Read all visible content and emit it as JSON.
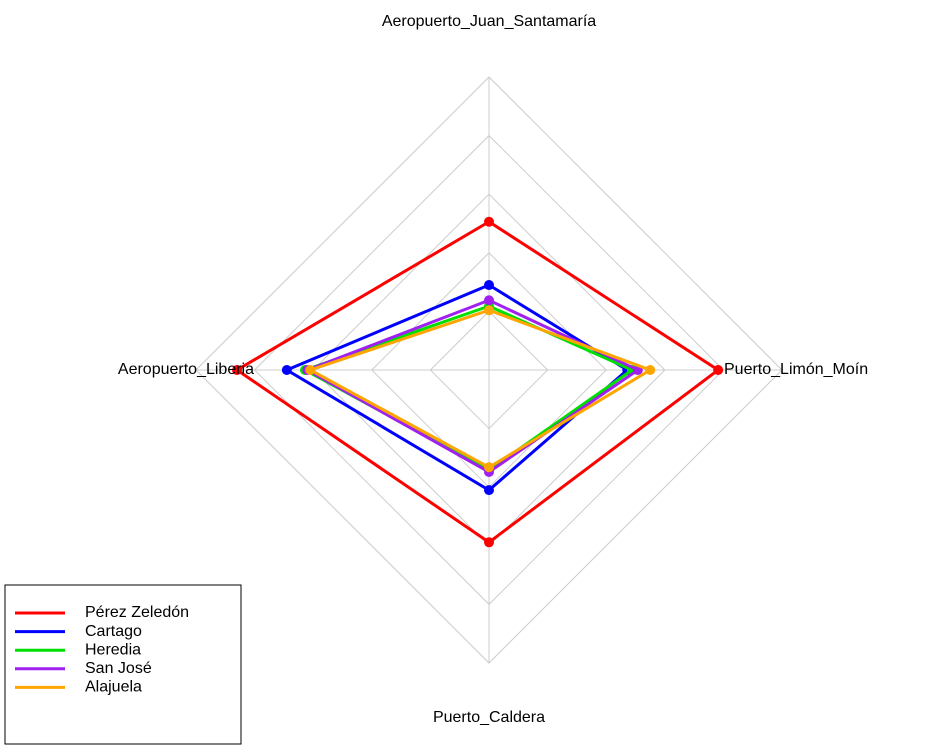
{
  "chart_data": {
    "type": "radar",
    "categories": [
      "Aeropuerto_Juan_Santamaría",
      "Aeropuerto_Liberia",
      "Puerto_Caldera",
      "Puerto_Limón_Moín"
    ],
    "ylim": [
      0,
      5
    ],
    "yticks": [
      1,
      2,
      3,
      4,
      5
    ],
    "grid": true,
    "legend": "bottom-left",
    "series": [
      {
        "name": "Pérez Zeledón",
        "color": "#ff0000",
        "values": [
          2.53,
          4.3,
          2.94,
          3.91
        ]
      },
      {
        "name": "Cartago",
        "color": "#0000ff",
        "values": [
          1.45,
          3.45,
          2.05,
          2.36
        ]
      },
      {
        "name": "Heredia",
        "color": "#00e000",
        "values": [
          1.09,
          3.14,
          1.71,
          2.44
        ]
      },
      {
        "name": "San José",
        "color": "#a020f0",
        "values": [
          1.19,
          3.1,
          1.74,
          2.54
        ]
      },
      {
        "name": "Alajuela",
        "color": "#ffa500",
        "values": [
          1.02,
          3.05,
          1.66,
          2.75
        ]
      }
    ]
  }
}
